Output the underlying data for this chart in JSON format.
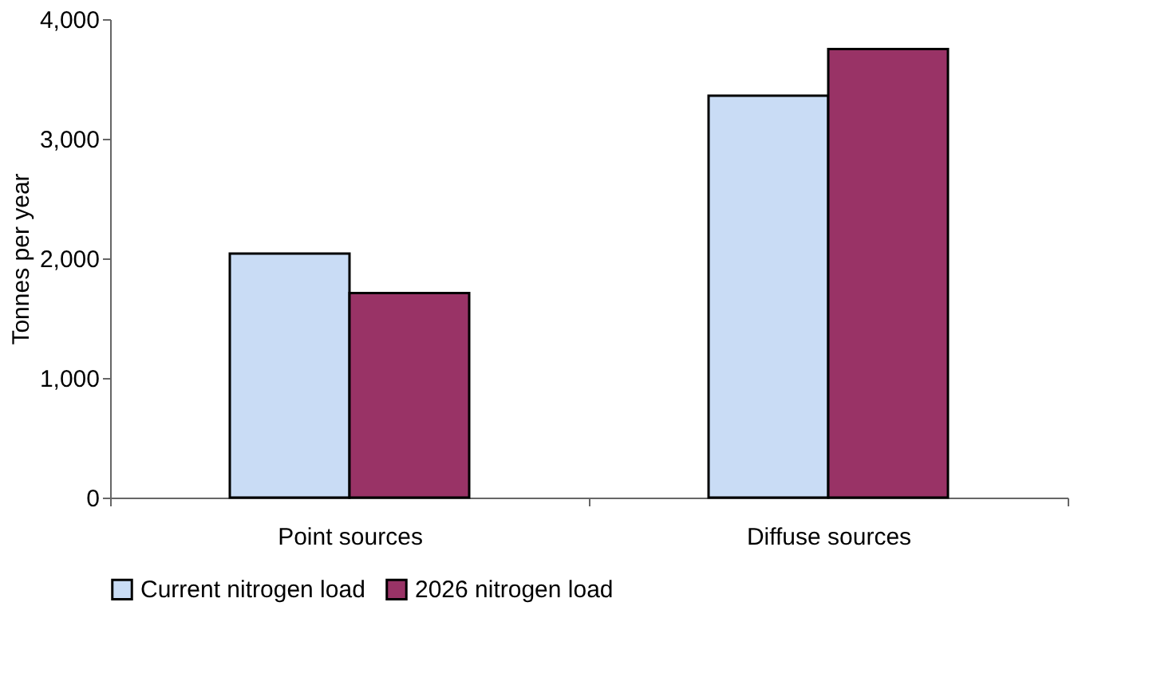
{
  "chart_data": {
    "type": "bar",
    "categories": [
      "Point sources",
      "Diffuse sources"
    ],
    "series": [
      {
        "name": "Current nitrogen load",
        "color": "#c9dcf5",
        "values": [
          2040,
          3360
        ]
      },
      {
        "name": "2026 nitrogen load",
        "color": "#993366",
        "values": [
          1710,
          3750
        ]
      }
    ],
    "ylabel": "Tonnes per year",
    "ylim": [
      0,
      4000
    ],
    "yticks": [
      0,
      {
        "value": 1000,
        "label": "1,000"
      },
      {
        "value": 2000,
        "label": "2,000"
      },
      {
        "value": 3000,
        "label": "3,000"
      },
      {
        "value": 4000,
        "label": "4,000"
      }
    ],
    "grid": false,
    "legend": "bottom"
  }
}
